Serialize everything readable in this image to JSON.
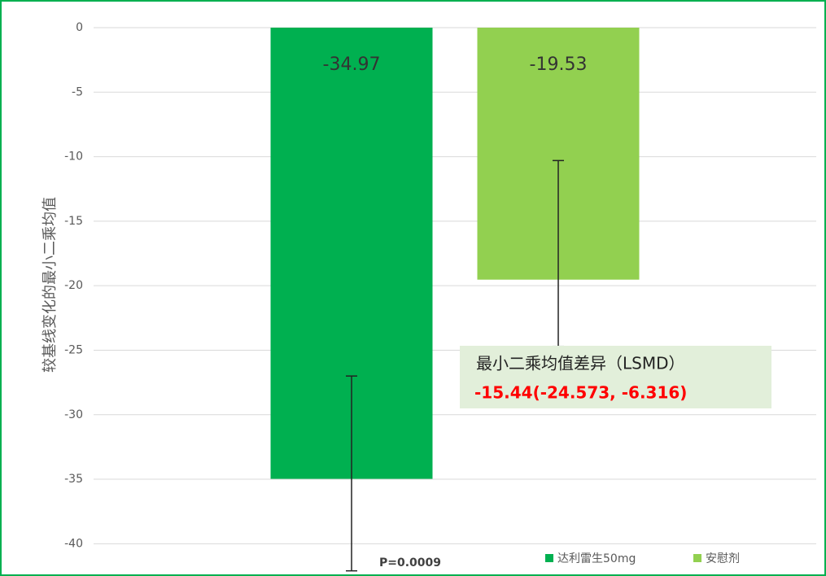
{
  "chart_data": {
    "type": "bar",
    "y_label": "较基线变化的最小二乘均值",
    "categories": [
      null
    ],
    "series": [
      {
        "name": "达利雷生50mg",
        "color": "#00b050",
        "values": [
          -34.97
        ],
        "error_high": [
          -27.0
        ],
        "error_low": [
          -42.1
        ]
      },
      {
        "name": "安慰剂",
        "color": "#92d050",
        "values": [
          -19.53
        ],
        "error_high": [
          -10.3
        ],
        "error_low": [
          -24.7
        ]
      }
    ],
    "ylim": [
      -42.5,
      0
    ],
    "yticks": [
      0,
      -5,
      -10,
      -15,
      -20,
      -25,
      -30,
      -35,
      -40
    ],
    "grid": true,
    "legend": "bottom-right",
    "annotations": {
      "lsmd_title": "最小二乘均值差异（LSMD）",
      "lsmd_value": "-15.44(-24.573, -6.316)",
      "p_value": "P=0.0009"
    }
  }
}
